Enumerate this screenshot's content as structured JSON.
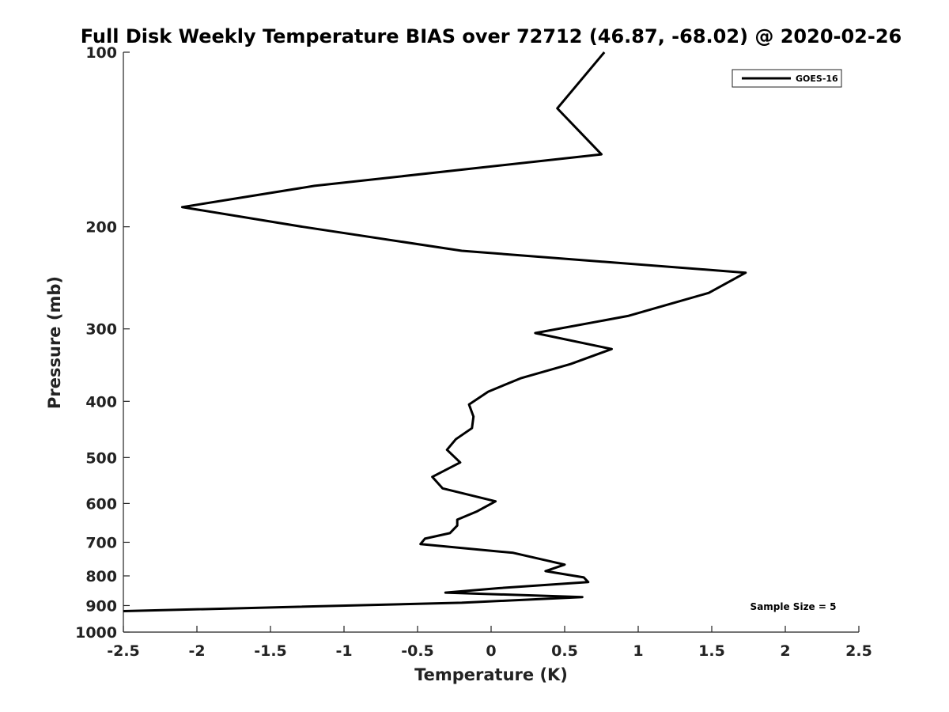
{
  "chart_data": {
    "type": "line",
    "title": "Full Disk Weekly Temperature BIAS over 72712 (46.87, -68.02) @ 2020-02-26",
    "xlabel": "Temperature (K)",
    "ylabel": "Pressure (mb)",
    "xlim": [
      -2.5,
      2.5
    ],
    "ylim": [
      100,
      1000
    ],
    "y_scale": "log",
    "y_reversed": true,
    "x_ticks": [
      "-2.5",
      "-2",
      "-1.5",
      "-1",
      "-0.5",
      "0",
      "0.5",
      "1",
      "1.5",
      "2",
      "2.5"
    ],
    "y_ticks": [
      "100",
      "200",
      "300",
      "400",
      "500",
      "600",
      "700",
      "800",
      "900",
      "1000"
    ],
    "grid": false,
    "legend": {
      "position": "top-right",
      "entries": [
        "GOES-16"
      ]
    },
    "annotation": "Sample Size = 5",
    "series": [
      {
        "name": "GOES-16",
        "color": "#000000",
        "points": [
          [
            0.77,
            100
          ],
          [
            0.45,
            125
          ],
          [
            0.75,
            150
          ],
          [
            -1.2,
            170
          ],
          [
            -2.1,
            185
          ],
          [
            -1.28,
            200
          ],
          [
            -0.2,
            220
          ],
          [
            1.73,
            240
          ],
          [
            1.48,
            260
          ],
          [
            0.93,
            285
          ],
          [
            0.3,
            305
          ],
          [
            0.82,
            325
          ],
          [
            0.54,
            345
          ],
          [
            0.2,
            365
          ],
          [
            -0.02,
            385
          ],
          [
            -0.15,
            405
          ],
          [
            -0.12,
            425
          ],
          [
            -0.13,
            445
          ],
          [
            -0.24,
            465
          ],
          [
            -0.3,
            485
          ],
          [
            -0.21,
            510
          ],
          [
            -0.4,
            540
          ],
          [
            -0.33,
            565
          ],
          [
            0.03,
            595
          ],
          [
            -0.1,
            620
          ],
          [
            -0.23,
            640
          ],
          [
            -0.23,
            655
          ],
          [
            -0.28,
            675
          ],
          [
            -0.45,
            690
          ],
          [
            -0.48,
            705
          ],
          [
            0.15,
            730
          ],
          [
            0.5,
            765
          ],
          [
            0.37,
            785
          ],
          [
            0.63,
            805
          ],
          [
            0.66,
            820
          ],
          [
            0.05,
            840
          ],
          [
            -0.31,
            855
          ],
          [
            0.62,
            870
          ],
          [
            -0.2,
            890
          ],
          [
            -2.5,
            920
          ]
        ]
      }
    ]
  }
}
